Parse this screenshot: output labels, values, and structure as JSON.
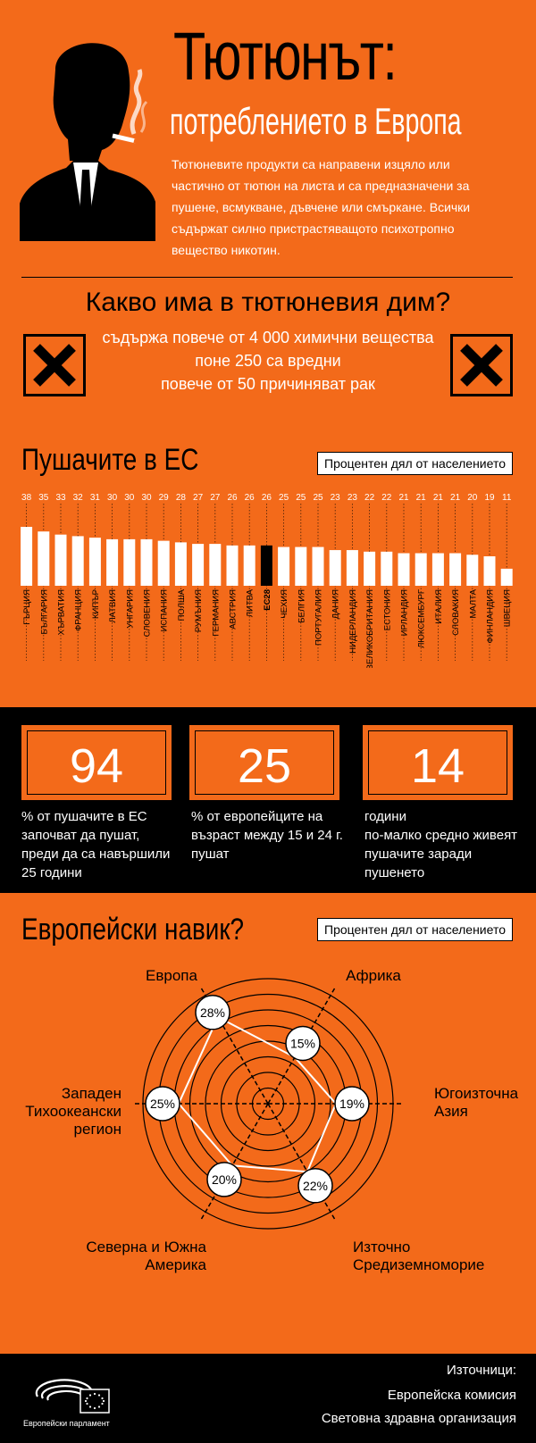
{
  "header": {
    "title": "Тютюнът:",
    "subtitle": "потреблението в Европа",
    "intro": "Тютюневите продукти са направени изцяло или частично от тютюн на листа и са предназначени за пушене, всмукване, дъвчене или смъркане. Всички съдържат силно пристрастяващото психотропно вещество никотин."
  },
  "smoke": {
    "title": "Какво има в тютюневия дим?",
    "lines": [
      "съдържа повече от 4 000 химични вещества",
      "поне 250 са вредни",
      "повече от 50 причиняват рак"
    ],
    "left_icon": "hazard-x-icon",
    "right_icon": "hazard-x-icon"
  },
  "smokers": {
    "title": "Пушачите в ЕС",
    "unit": "Процентен дял от населението"
  },
  "stats": [
    {
      "number": "94",
      "caption": [
        "% от пушачите в ЕС",
        "започват да пушат,",
        "преди да са навършили",
        "25 години"
      ]
    },
    {
      "number": "25",
      "caption": [
        "% от европейците на",
        "възраст между 15 и 24 г.",
        "пушат"
      ]
    },
    {
      "number": "14",
      "caption": [
        "години",
        "по-малко средно живеят",
        "пушачите заради",
        "пушенето"
      ]
    }
  ],
  "habit": {
    "title": "Европейски навик?",
    "unit": "Процентен дял от населението"
  },
  "footer": {
    "sources_title": "Източници:",
    "sources": [
      "Европейска комисия",
      "Световна здравна организация"
    ],
    "logo_text": "Европейски парламент"
  },
  "colors": {
    "background": "#f36a1a",
    "accent": "#000000",
    "bar": "#ffffff",
    "highlight_bar": "#000000"
  },
  "chart_data": [
    {
      "type": "bar",
      "title": "Пушачите в ЕС",
      "ylabel": "Процентен дял от населението",
      "categories": [
        "ГЪРЦИЯ",
        "БЪЛГАРИЯ",
        "ХЪРВАТИЯ",
        "ФРАНЦИЯ",
        "КИПЪР",
        "ЛАТВИЯ",
        "УНГАРИЯ",
        "СЛОВЕНИЯ",
        "ИСПАНИЯ",
        "ПОЛША",
        "РУМЪНИЯ",
        "ГЕРМАНИЯ",
        "АВСТРИЯ",
        "ЛИТВА",
        "ЕС28",
        "ЧЕХИЯ",
        "БЕЛГИЯ",
        "ПОРТУГАЛИЯ",
        "ДАНИЯ",
        "НИДЕРЛАНДИЯ",
        "ВЕЛИКОБРИТАНИЯ",
        "ЕСТОНИЯ",
        "ИРЛАНДИЯ",
        "ЛЮКСЕМБУРГ",
        "ИТАЛИЯ",
        "СЛОВАКИЯ",
        "МАЛТА",
        "ФИНЛАНДИЯ",
        "ШВЕЦИЯ"
      ],
      "values": [
        38,
        35,
        33,
        32,
        31,
        30,
        30,
        30,
        29,
        28,
        27,
        27,
        26,
        26,
        26,
        25,
        25,
        25,
        23,
        23,
        22,
        22,
        21,
        21,
        21,
        21,
        20,
        19,
        11
      ],
      "highlight": "ЕС28",
      "ylim": [
        0,
        38
      ]
    },
    {
      "type": "radar",
      "title": "Европейски навик?",
      "ylabel": "Процентен дял от населението",
      "categories": [
        "Европа",
        "Африка",
        "Югоизточна Азия",
        "Източно Средиземноморие",
        "Северна и Южна Америка",
        "Западен Тихоокеански регион"
      ],
      "values": [
        28,
        15,
        19,
        22,
        20,
        25
      ],
      "value_labels": [
        "28%",
        "15%",
        "19%",
        "22%",
        "20%",
        "25%"
      ],
      "rlim": [
        0,
        35
      ]
    }
  ]
}
